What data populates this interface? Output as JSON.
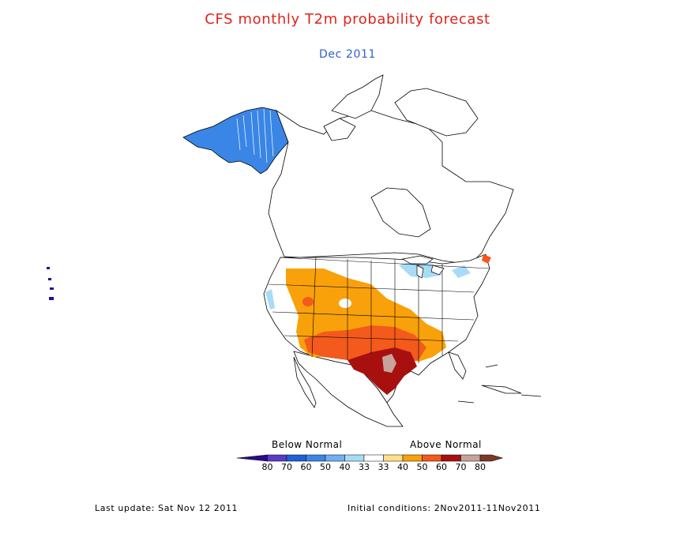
{
  "title": "CFS monthly T2m probability forecast",
  "subtitle": "Dec 2011",
  "legend": {
    "below_label": "Below Normal",
    "above_label": "Above Normal",
    "ticks": [
      "80",
      "70",
      "60",
      "50",
      "40",
      "33",
      "33",
      "40",
      "50",
      "60",
      "70",
      "80"
    ],
    "colors": [
      "#2a0a8a",
      "#5a3bc8",
      "#1f62d8",
      "#3a86e6",
      "#6fb0f0",
      "#a8dcf6",
      "#ffffff",
      "#fde08a",
      "#f9a10a",
      "#f35a1b",
      "#a81010",
      "#c7a39b",
      "#7a3a26"
    ]
  },
  "footer": {
    "last_update": "Last update: Sat Nov 12 2011",
    "initial_conditions": "Initial conditions: 2Nov2011-11Nov2011"
  }
}
